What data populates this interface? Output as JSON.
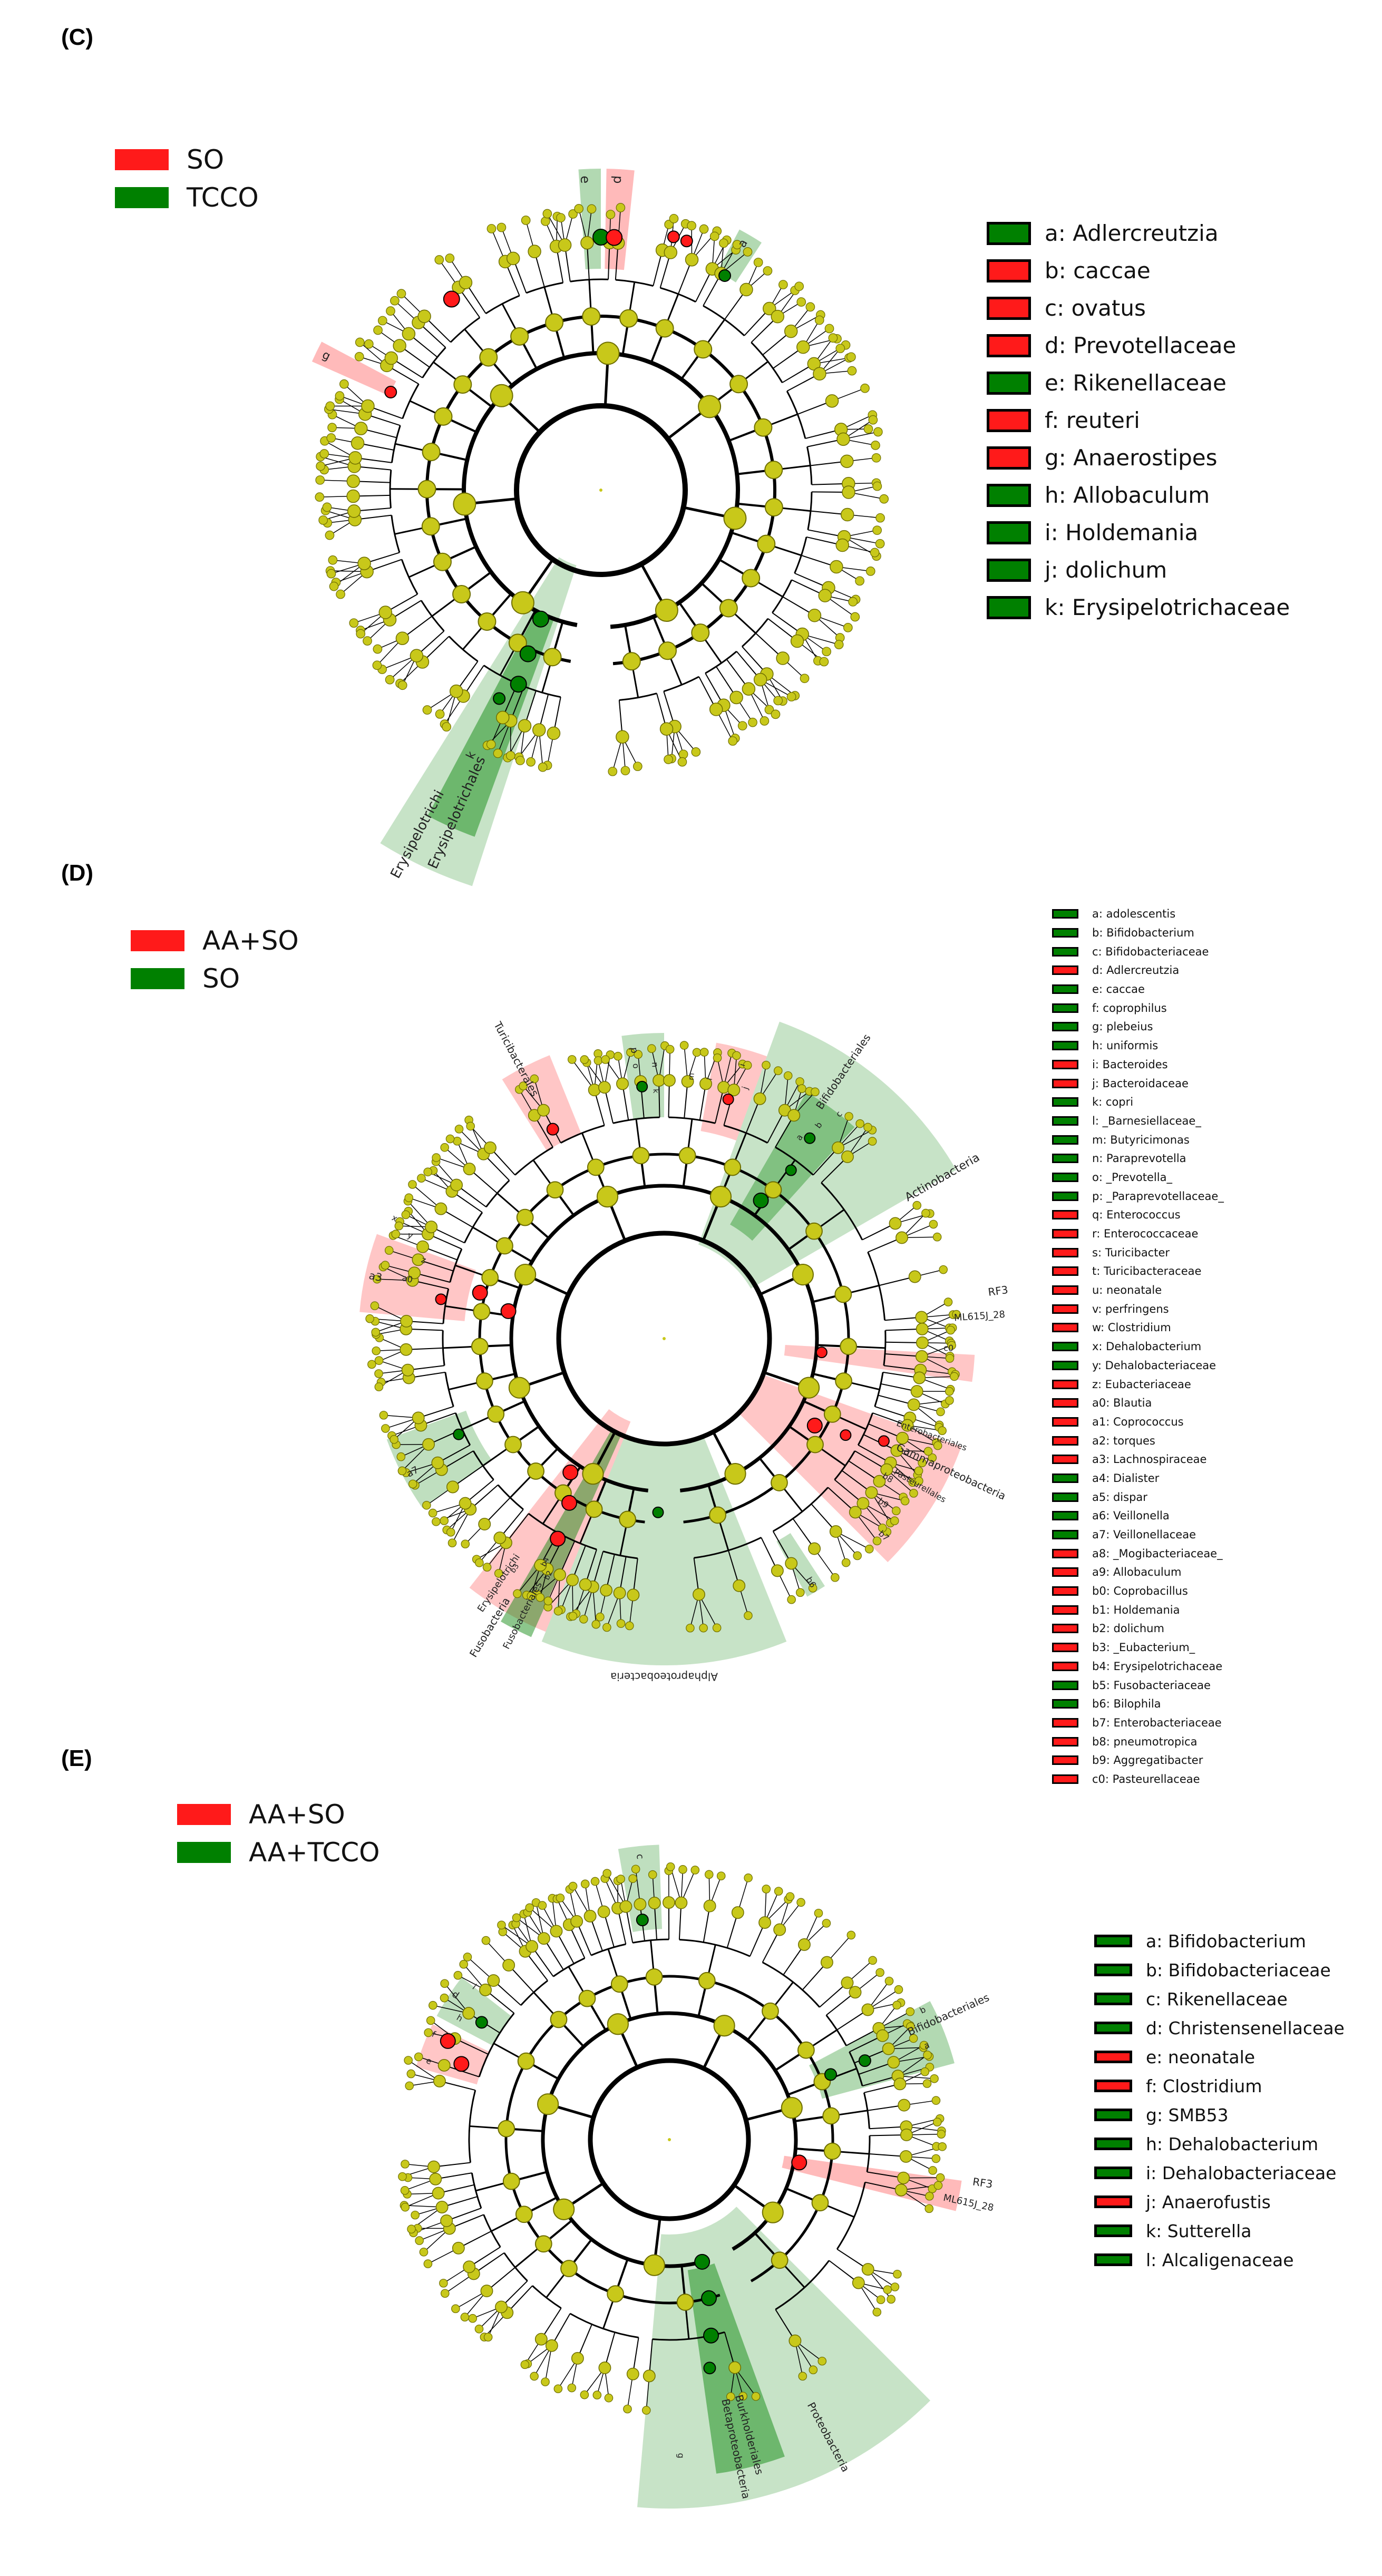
{
  "colors": {
    "red": "#ff1a1a",
    "green": "#008000",
    "node": "#c8c81a",
    "nodeStroke": "#6e6e00",
    "branch": "#000000"
  },
  "panels": [
    {
      "id": "C",
      "label": "(C)",
      "groups": [
        {
          "name": "SO",
          "color": "red"
        },
        {
          "name": "TCCO",
          "color": "green"
        }
      ],
      "key": [
        {
          "text": "a: Adlercreutzia",
          "color": "green"
        },
        {
          "text": "b: caccae",
          "color": "red"
        },
        {
          "text": "c: ovatus",
          "color": "red"
        },
        {
          "text": "d: Prevotellaceae",
          "color": "red"
        },
        {
          "text": "e: Rikenellaceae",
          "color": "green"
        },
        {
          "text": "f: reuteri",
          "color": "red"
        },
        {
          "text": "g: Anaerostipes",
          "color": "red"
        },
        {
          "text": "h: Allobaculum",
          "color": "green"
        },
        {
          "text": "i: Holdemania",
          "color": "green"
        },
        {
          "text": "j: dolichum",
          "color": "green"
        },
        {
          "text": "k: Erysipelotrichaceae",
          "color": "green"
        }
      ],
      "clade_labels": [
        "Erysipelotrichi",
        "Erysipelotrichales",
        "e",
        "d",
        "a",
        "g",
        "k"
      ]
    },
    {
      "id": "D",
      "label": "(D)",
      "groups": [
        {
          "name": "AA+SO",
          "color": "red"
        },
        {
          "name": "SO",
          "color": "green"
        }
      ],
      "key": [
        {
          "text": "a: adolescentis",
          "color": "green"
        },
        {
          "text": "b: Bifidobacterium",
          "color": "green"
        },
        {
          "text": "c: Bifidobacteriaceae",
          "color": "green"
        },
        {
          "text": "d: Adlercreutzia",
          "color": "red"
        },
        {
          "text": "e: caccae",
          "color": "green"
        },
        {
          "text": "f: coprophilus",
          "color": "green"
        },
        {
          "text": "g: plebeius",
          "color": "green"
        },
        {
          "text": "h: uniformis",
          "color": "green"
        },
        {
          "text": "i: Bacteroides",
          "color": "red"
        },
        {
          "text": "j: Bacteroidaceae",
          "color": "red"
        },
        {
          "text": "k: copri",
          "color": "green"
        },
        {
          "text": "l: _Barnesiellaceae_",
          "color": "green"
        },
        {
          "text": "m: Butyricimonas",
          "color": "green"
        },
        {
          "text": "n: Paraprevotella",
          "color": "green"
        },
        {
          "text": "o: _Prevotella_",
          "color": "green"
        },
        {
          "text": "p: _Paraprevotellaceae_",
          "color": "green"
        },
        {
          "text": "q: Enterococcus",
          "color": "red"
        },
        {
          "text": "r: Enterococcaceae",
          "color": "red"
        },
        {
          "text": "s: Turicibacter",
          "color": "red"
        },
        {
          "text": "t: Turicibacteraceae",
          "color": "red"
        },
        {
          "text": "u: neonatale",
          "color": "red"
        },
        {
          "text": "v: perfringens",
          "color": "red"
        },
        {
          "text": "w: Clostridium",
          "color": "red"
        },
        {
          "text": "x: Dehalobacterium",
          "color": "green"
        },
        {
          "text": "y: Dehalobacteriaceae",
          "color": "green"
        },
        {
          "text": "z: Eubacteriaceae",
          "color": "red"
        },
        {
          "text": "a0: Blautia",
          "color": "red"
        },
        {
          "text": "a1: Coprococcus",
          "color": "red"
        },
        {
          "text": "a2: torques",
          "color": "red"
        },
        {
          "text": "a3: Lachnospiraceae",
          "color": "red"
        },
        {
          "text": "a4: Dialister",
          "color": "green"
        },
        {
          "text": "a5: dispar",
          "color": "green"
        },
        {
          "text": "a6: Veillonella",
          "color": "green"
        },
        {
          "text": "a7: Veillonellaceae",
          "color": "green"
        },
        {
          "text": "a8: _Mogibacteriaceae_",
          "color": "red"
        },
        {
          "text": "a9: Allobaculum",
          "color": "red"
        },
        {
          "text": "b0: Coprobacillus",
          "color": "red"
        },
        {
          "text": "b1: Holdemania",
          "color": "red"
        },
        {
          "text": "b2: dolichum",
          "color": "red"
        },
        {
          "text": "b3: _Eubacterium_",
          "color": "red"
        },
        {
          "text": "b4: Erysipelotrichaceae",
          "color": "red"
        },
        {
          "text": "b5: Fusobacteriaceae",
          "color": "green"
        },
        {
          "text": "b6: Bilophila",
          "color": "green"
        },
        {
          "text": "b7: Enterobacteriaceae",
          "color": "red"
        },
        {
          "text": "b8: pneumotropica",
          "color": "red"
        },
        {
          "text": "b9: Aggregatibacter",
          "color": "red"
        },
        {
          "text": "c0: Pasteurellaceae",
          "color": "red"
        }
      ],
      "clade_labels": [
        "Turicibacterales",
        "Bifidobacteriales",
        "Actinobacteria",
        "Alphaproteobacteria",
        "Fusobacteria",
        "Fusobacteriales",
        "Erysipelotrichi",
        "RF3",
        "ML615J_28",
        "Gammaproteobacteria",
        "Pasteurellales",
        "Enterobacteriales",
        "a3",
        "a0",
        "a7",
        "b8",
        "b9",
        "c0",
        "b7",
        "b6",
        "b4",
        "b3",
        "b2",
        "i",
        "j",
        "p",
        "o",
        "n",
        "m",
        "l",
        "k",
        "c",
        "b",
        "a",
        "z",
        "y",
        "x"
      ]
    },
    {
      "id": "E",
      "label": "(E)",
      "groups": [
        {
          "name": "AA+SO",
          "color": "red"
        },
        {
          "name": "AA+TCCO",
          "color": "green"
        }
      ],
      "key": [
        {
          "text": "a: Bifidobacterium",
          "color": "green"
        },
        {
          "text": "b: Bifidobacteriaceae",
          "color": "green"
        },
        {
          "text": "c: Rikenellaceae",
          "color": "green"
        },
        {
          "text": "d: Christensenellaceae",
          "color": "green"
        },
        {
          "text": "e: neonatale",
          "color": "red"
        },
        {
          "text": "f: Clostridium",
          "color": "red"
        },
        {
          "text": "g: SMB53",
          "color": "green"
        },
        {
          "text": "h: Dehalobacterium",
          "color": "green"
        },
        {
          "text": "i: Dehalobacteriaceae",
          "color": "green"
        },
        {
          "text": "j: Anaerofustis",
          "color": "red"
        },
        {
          "text": "k: Sutterella",
          "color": "green"
        },
        {
          "text": "l: Alcaligenaceae",
          "color": "green"
        }
      ],
      "clade_labels": [
        "Bifidobacteriales",
        "RF3",
        "ML615J_28",
        "Proteobacteria",
        "Betaproteobacteria",
        "Burkholderiales",
        "c",
        "d",
        "e",
        "f",
        "g",
        "h",
        "i",
        "a",
        "b"
      ]
    }
  ]
}
